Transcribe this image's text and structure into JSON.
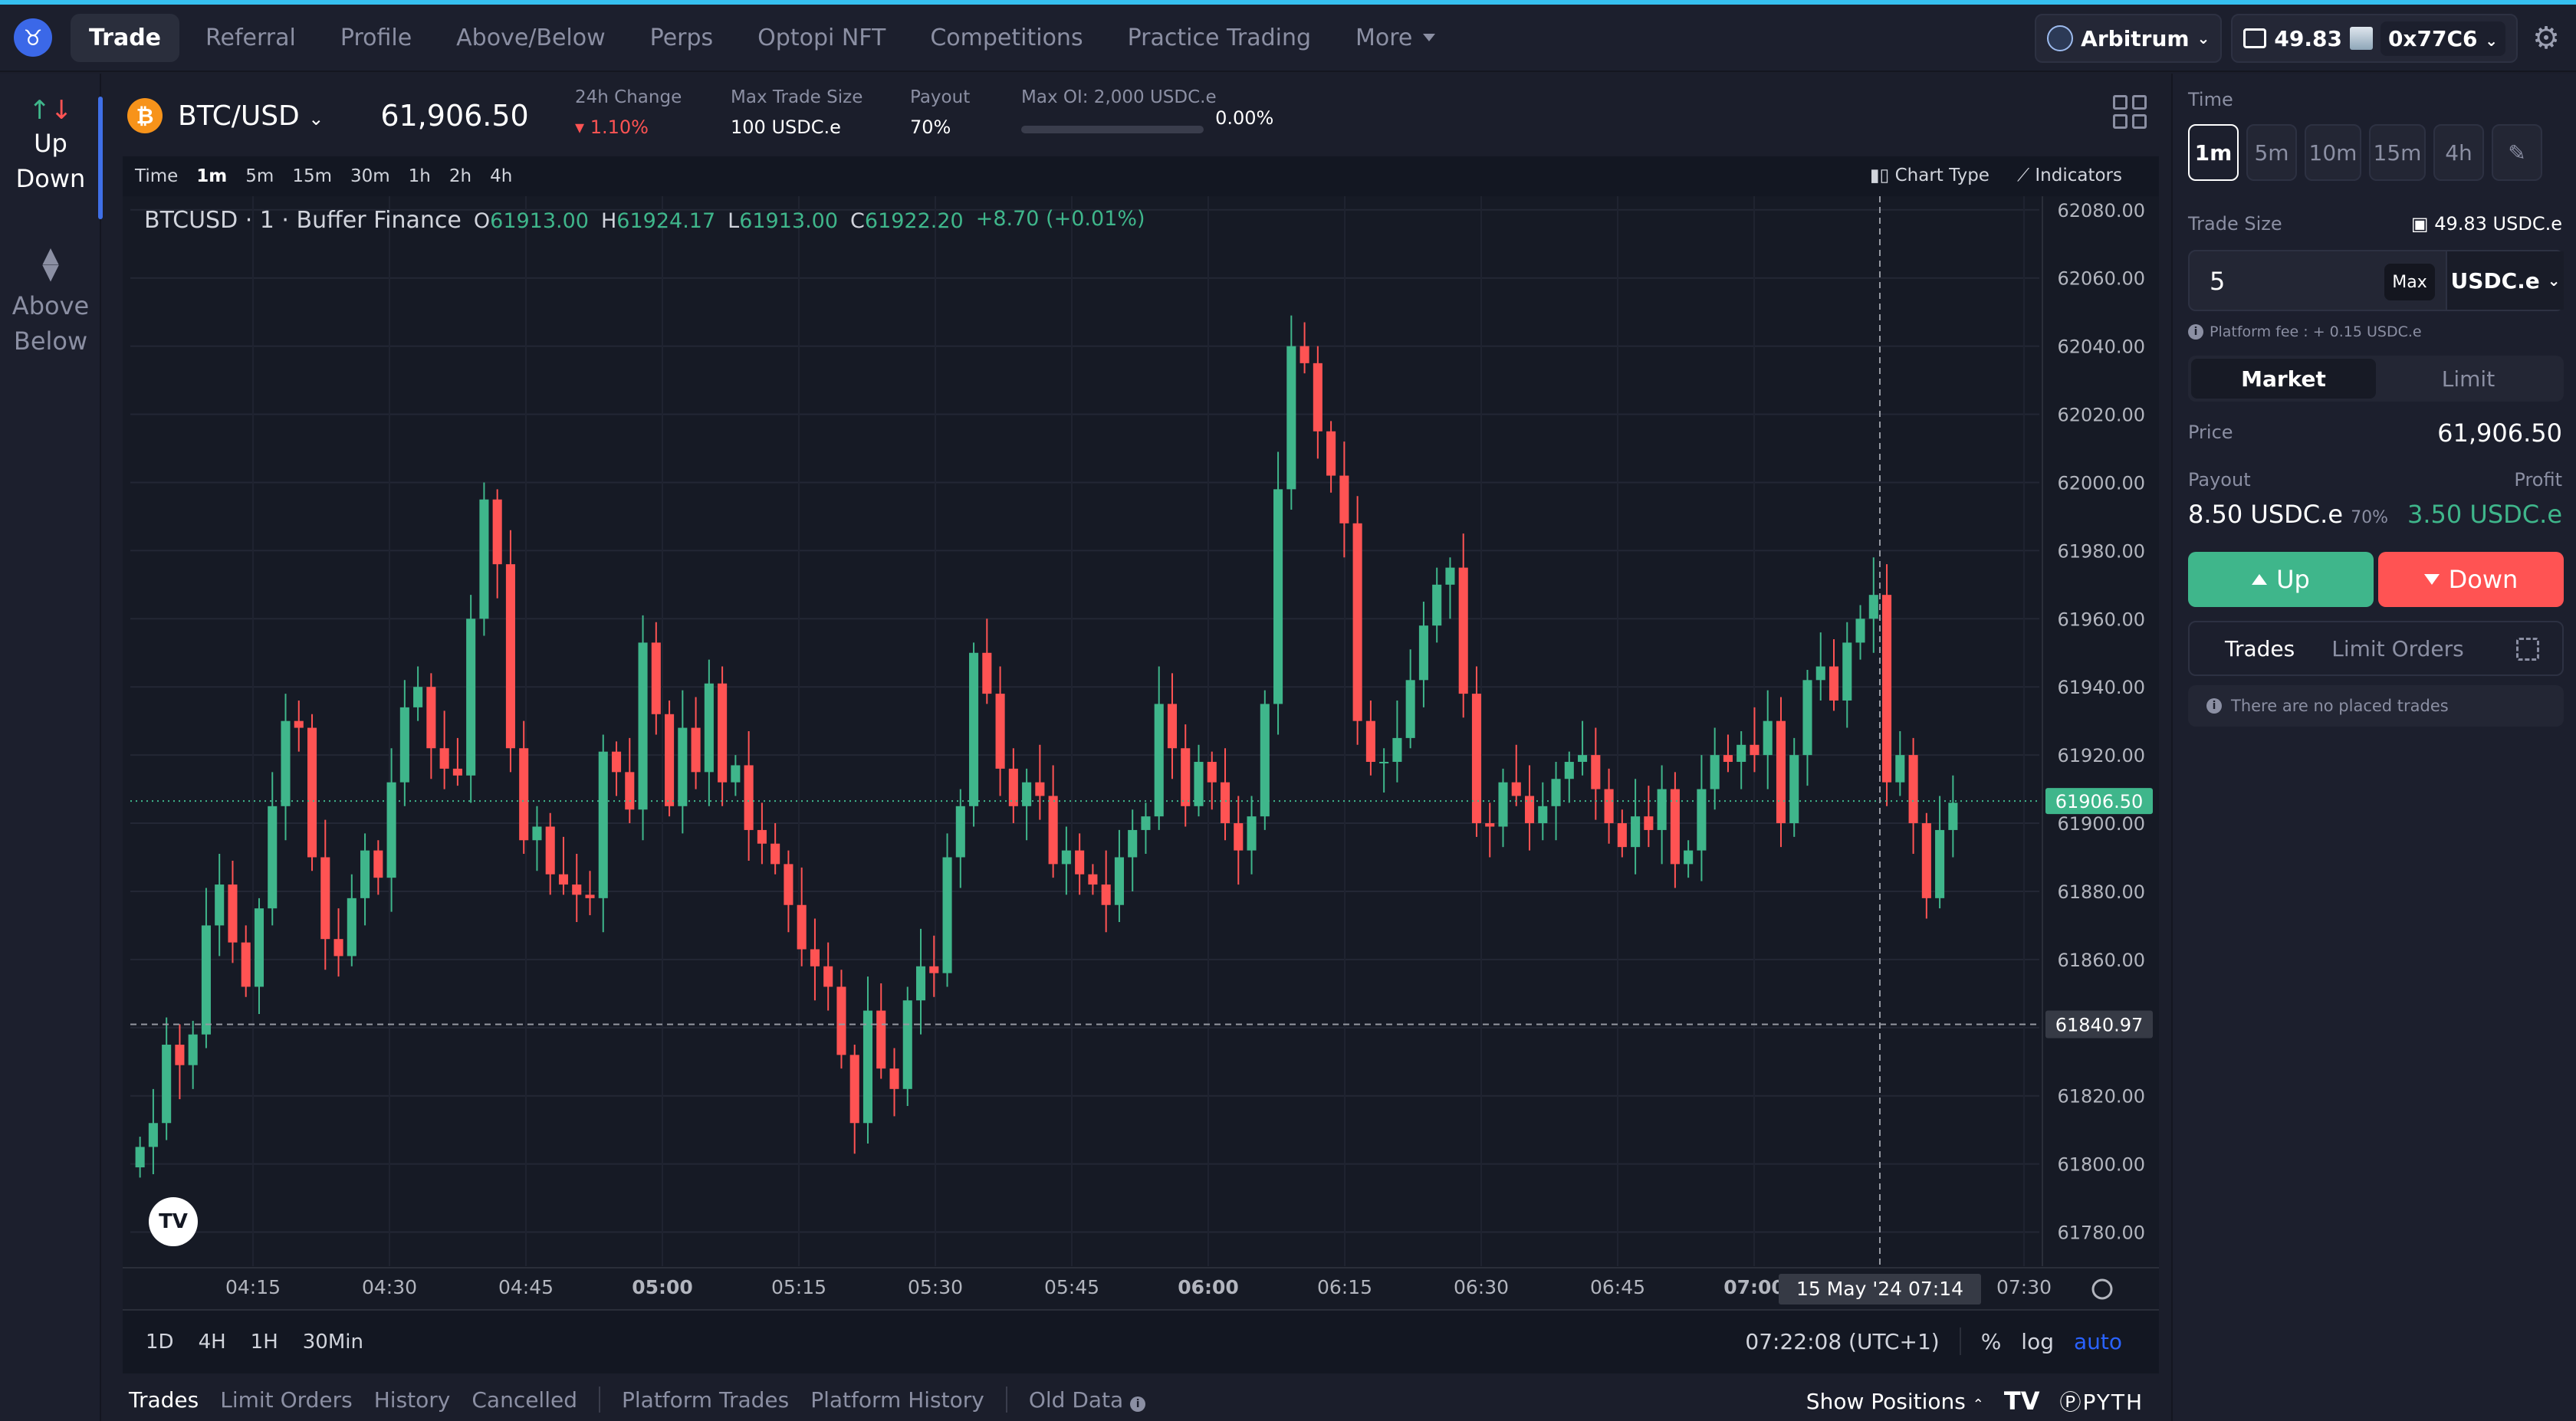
{
  "nav": {
    "items": [
      "Trade",
      "Referral",
      "Profile",
      "Above/Below",
      "Perps",
      "Optopi NFT",
      "Competitions",
      "Practice Trading"
    ],
    "more_label": "More",
    "chain": "Arbitrum",
    "balance": "49.83",
    "address": "0x77C6"
  },
  "sidebar": {
    "up_down_label_1": "Up",
    "up_down_label_2": "Down",
    "above_below_label_1": "Above",
    "above_below_label_2": "Below"
  },
  "pair": {
    "coin_glyph": "₿",
    "name": "BTC/USD",
    "price": "61,906.50",
    "stats": {
      "change_label": "24h Change",
      "change_value": "1.10%",
      "max_trade_label": "Max Trade Size",
      "max_trade_value": "100 USDC.e",
      "payout_label": "Payout",
      "payout_value": "70%",
      "max_oi_label": "Max OI: 2,000 USDC.e",
      "max_oi_pct": "0.00%"
    }
  },
  "toolbar": {
    "time_label": "Time",
    "timeframes": [
      "1m",
      "5m",
      "15m",
      "30m",
      "1h",
      "2h",
      "4h"
    ],
    "selected": "1m",
    "chart_type": "Chart Type",
    "indicators": "Indicators"
  },
  "legend": {
    "symbol": "BTCUSD · 1 · Buffer Finance",
    "o_label": "O",
    "o": "61913.00",
    "h_label": "H",
    "h": "61924.17",
    "l_label": "L",
    "l": "61913.00",
    "c_label": "C",
    "c": "61922.20",
    "change": "+8.70 (+0.01%)"
  },
  "chart_data": {
    "type": "candlestick",
    "y_ticks": [
      62080,
      62060,
      62040,
      62020,
      62000,
      61980,
      61960,
      61940,
      61920,
      61900,
      61880,
      61860,
      61840,
      61820,
      61800,
      61780
    ],
    "ylim": [
      61770,
      62084
    ],
    "x_ticks": [
      {
        "label": "04:15",
        "bold": false
      },
      {
        "label": "04:30",
        "bold": false
      },
      {
        "label": "04:45",
        "bold": false
      },
      {
        "label": "05:00",
        "bold": true
      },
      {
        "label": "05:15",
        "bold": false
      },
      {
        "label": "05:30",
        "bold": false
      },
      {
        "label": "05:45",
        "bold": false
      },
      {
        "label": "06:00",
        "bold": true
      },
      {
        "label": "06:15",
        "bold": false
      },
      {
        "label": "06:30",
        "bold": false
      },
      {
        "label": "06:45",
        "bold": false
      },
      {
        "label": "07:00",
        "bold": true
      },
      {
        "label": "07:30",
        "bold": false
      }
    ],
    "current_price": "61906.50",
    "crosshair_price": "61840.97",
    "crosshair_time": "15 May '24   07:14",
    "up_color": "#3fb68b",
    "down_color": "#ff5353",
    "closes": [
      61805,
      61812,
      61835,
      61829,
      61838,
      61870,
      61882,
      61865,
      61852,
      61875,
      61905,
      61930,
      61928,
      61890,
      61866,
      61861,
      61878,
      61892,
      61884,
      61912,
      61934,
      61940,
      61922,
      61916,
      61914,
      61960,
      61995,
      61976,
      61922,
      61895,
      61899,
      61885,
      61882,
      61879,
      61878,
      61921,
      61915,
      61904,
      61953,
      61932,
      61905,
      61928,
      61915,
      61941,
      61912,
      61917,
      61898,
      61894,
      61888,
      61876,
      61863,
      61858,
      61852,
      61832,
      61812,
      61845,
      61828,
      61822,
      61848,
      61858,
      61856,
      61890,
      61905,
      61950,
      61938,
      61916,
      61905,
      61912,
      61908,
      61888,
      61892,
      61885,
      61882,
      61876,
      61890,
      61898,
      61902,
      61935,
      61922,
      61905,
      61918,
      61912,
      61900,
      61892,
      61902,
      61935,
      61998,
      62040,
      62035,
      62015,
      62002,
      61988,
      61930,
      61918,
      61918,
      61925,
      61942,
      61958,
      61970,
      61975,
      61938,
      61900,
      61899,
      61912,
      61908,
      61900,
      61905,
      61913,
      61918,
      61920,
      61910,
      61900,
      61893,
      61902,
      61898,
      61910,
      61888,
      61892,
      61910,
      61920,
      61918,
      61923,
      61920,
      61930,
      61900,
      61920,
      61942,
      61946,
      61936,
      61953,
      61960,
      61967,
      61912,
      61920,
      61900,
      61878,
      61898,
      61906
    ]
  },
  "bottom_bar": {
    "ranges": [
      "1D",
      "4H",
      "1H",
      "30Min"
    ],
    "clock": "07:22:08 (UTC+1)",
    "pct": "%",
    "log": "log",
    "auto": "auto"
  },
  "bottom_tabs": {
    "tabs": [
      "Trades",
      "Limit Orders",
      "History",
      "Cancelled"
    ],
    "tabs2": [
      "Platform Trades",
      "Platform History"
    ],
    "old_data": "Old Data",
    "show_positions": "Show Positions",
    "pyth": "PYTH"
  },
  "panel": {
    "time_label": "Time",
    "time_buttons": [
      "1m",
      "5m",
      "10m",
      "15m",
      "4h"
    ],
    "trade_size_label": "Trade Size",
    "balance": "49.83 USDC.e",
    "trade_size_value": "5",
    "max_label": "Max",
    "currency": "USDC.e",
    "fee_text": "Platform fee : + 0.15 USDC.e",
    "market_label": "Market",
    "limit_label": "Limit",
    "price_label": "Price",
    "price_value": "61,906.50",
    "payout_label": "Payout",
    "profit_label": "Profit",
    "payout_value": "8.50 USDC.e",
    "payout_pct": "70%",
    "profit_value": "3.50 USDC.e",
    "up_label": "Up",
    "down_label": "Down",
    "trades_tab": "Trades",
    "limit_orders_tab": "Limit Orders",
    "no_trades": "There are no placed trades"
  }
}
